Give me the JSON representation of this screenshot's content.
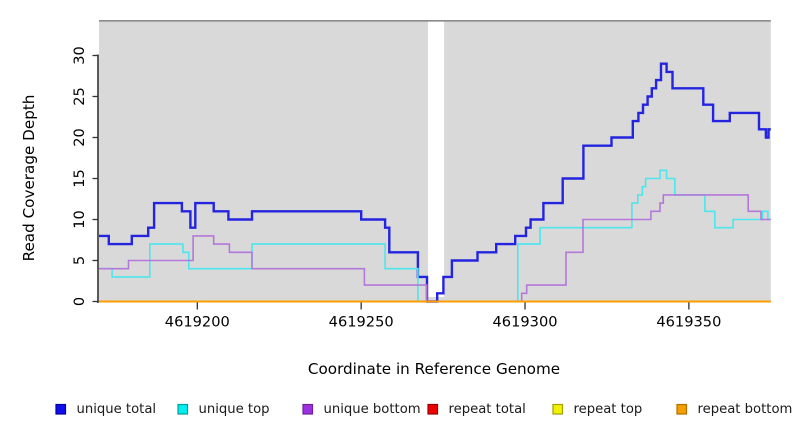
{
  "figure": {
    "background": "#ffffff",
    "panel_background": "#d9d9d9",
    "panel_top_border_color": "#8c8c8c",
    "axis_color": "#000000",
    "tick_color": "#333333"
  },
  "chart_data": {
    "type": "line",
    "step": true,
    "title": "",
    "xlabel": "Coordinate in Reference Genome",
    "ylabel": "Read Coverage Depth",
    "x_axis": {
      "range": [
        4619170,
        4619375
      ],
      "ticks": [
        4619200,
        4619250,
        4619300,
        4619350
      ],
      "tick_labels": [
        "4619200",
        "4619250",
        "4619300",
        "4619350"
      ]
    },
    "y_axis": {
      "range": [
        0,
        34
      ],
      "ticks": [
        0,
        5,
        10,
        15,
        20,
        25,
        30
      ],
      "tick_labels": [
        "0",
        "5",
        "10",
        "15",
        "20",
        "25",
        "30"
      ]
    },
    "grid": false,
    "legend_position": "bottom",
    "gap_region": {
      "from": 4619270.4,
      "to": 4619275.3,
      "color": "#ffffff"
    },
    "series": [
      {
        "key": "unique_total",
        "label": "unique total",
        "line_color": "#2424e0",
        "line_width": 2.4,
        "legend_fill": "#0d0dee",
        "legend_border": "#0000a0",
        "points": [
          [
            4619170.0,
            8
          ],
          [
            4619173.0,
            7
          ],
          [
            4619180.0,
            8
          ],
          [
            4619185.0,
            9
          ],
          [
            4619186.8,
            12
          ],
          [
            4619195.3,
            11
          ],
          [
            4619197.9,
            9
          ],
          [
            4619199.4,
            12
          ],
          [
            4619205.0,
            11
          ],
          [
            4619209.5,
            10
          ],
          [
            4619216.7,
            11
          ],
          [
            4619250.0,
            10
          ],
          [
            4619257.3,
            9
          ],
          [
            4619258.6,
            6
          ],
          [
            4619267.3,
            3
          ],
          [
            4619270.1,
            0
          ],
          [
            4619273.2,
            1
          ],
          [
            4619275.1,
            3
          ],
          [
            4619277.7,
            5
          ],
          [
            4619285.5,
            6
          ],
          [
            4619291.2,
            7
          ],
          [
            4619297.0,
            8
          ],
          [
            4619300.3,
            9
          ],
          [
            4619301.7,
            10
          ],
          [
            4619305.6,
            12
          ],
          [
            4619311.5,
            15
          ],
          [
            4619317.8,
            19
          ],
          [
            4619326.4,
            20
          ],
          [
            4619332.9,
            22
          ],
          [
            4619334.6,
            23
          ],
          [
            4619336.0,
            24
          ],
          [
            4619337.4,
            25
          ],
          [
            4619338.7,
            26
          ],
          [
            4619340.0,
            27
          ],
          [
            4619341.5,
            29
          ],
          [
            4619343.2,
            28
          ],
          [
            4619345.0,
            26
          ],
          [
            4619354.4,
            24
          ],
          [
            4619357.4,
            22
          ],
          [
            4619362.5,
            23
          ],
          [
            4619371.4,
            21
          ],
          [
            4619373.5,
            20
          ],
          [
            4619374.3,
            21
          ]
        ]
      },
      {
        "key": "unique_top",
        "label": "unique top",
        "line_color": "#4de6ec",
        "line_width": 1.6,
        "legend_fill": "#00eeee",
        "legend_border": "#00a0a0",
        "points": [
          [
            4619170.0,
            4
          ],
          [
            4619174.0,
            3
          ],
          [
            4619185.5,
            7
          ],
          [
            4619195.6,
            6
          ],
          [
            4619197.4,
            4
          ],
          [
            4619216.7,
            7
          ],
          [
            4619257.3,
            4
          ],
          [
            4619267.3,
            0
          ],
          [
            4619297.8,
            7
          ],
          [
            4619304.6,
            9
          ],
          [
            4619332.6,
            12
          ],
          [
            4619334.4,
            13
          ],
          [
            4619335.8,
            14
          ],
          [
            4619336.8,
            15
          ],
          [
            4619341.2,
            16
          ],
          [
            4619343.2,
            15
          ],
          [
            4619345.7,
            13
          ],
          [
            4619354.9,
            11
          ],
          [
            4619357.9,
            9
          ],
          [
            4619363.5,
            10
          ],
          [
            4619372.5,
            11
          ],
          [
            4619374.1,
            10
          ]
        ]
      },
      {
        "key": "unique_bottom",
        "label": "unique bottom",
        "line_color": "#b478d9",
        "line_width": 1.6,
        "legend_fill": "#9d30e0",
        "legend_border": "#6e22a0",
        "points": [
          [
            4619170.0,
            4
          ],
          [
            4619179.0,
            5
          ],
          [
            4619198.7,
            8
          ],
          [
            4619205.0,
            7
          ],
          [
            4619209.8,
            6
          ],
          [
            4619216.7,
            4
          ],
          [
            4619251.0,
            2
          ],
          [
            4619270.0,
            0
          ],
          [
            4619299.0,
            1
          ],
          [
            4619300.5,
            2
          ],
          [
            4619312.5,
            6
          ],
          [
            4619317.7,
            10
          ],
          [
            4619338.4,
            11
          ],
          [
            4619341.2,
            12
          ],
          [
            4619342.2,
            13
          ],
          [
            4619368.1,
            11
          ],
          [
            4619372.0,
            10
          ]
        ]
      },
      {
        "key": "repeat_total",
        "label": "repeat total",
        "line_color": "#de0000",
        "line_width": 1.6,
        "legend_fill": "#ee0000",
        "legend_border": "#990000",
        "points": [
          [
            4619170.0,
            0
          ]
        ]
      },
      {
        "key": "repeat_top",
        "label": "repeat top",
        "line_color": "#eded00",
        "line_width": 1.6,
        "legend_fill": "#f2f200",
        "legend_border": "#a0a000",
        "points": [
          [
            4619170.0,
            0
          ]
        ]
      },
      {
        "key": "repeat_bottom",
        "label": "repeat bottom",
        "line_color": "#ff9e00",
        "line_width": 2.0,
        "legend_fill": "#f59e00",
        "legend_border": "#b06f00",
        "points": [
          [
            4619170.0,
            0
          ]
        ]
      }
    ]
  }
}
